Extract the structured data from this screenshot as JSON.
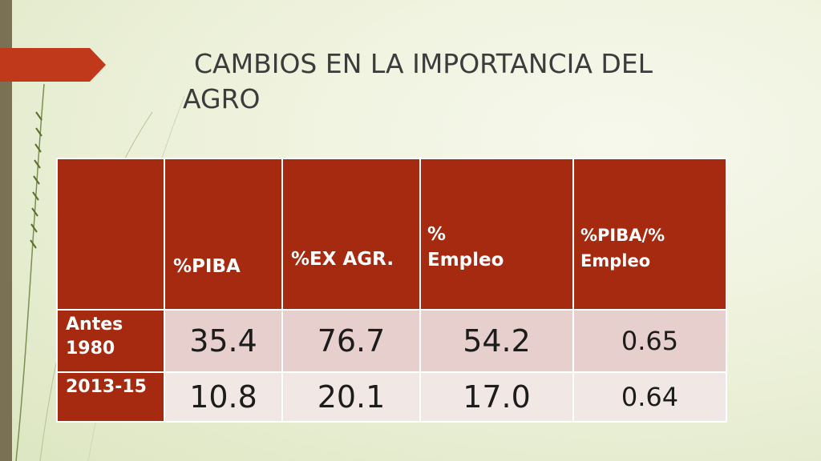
{
  "slide": {
    "title_line1": "CAMBIOS  EN LA IMPORTANCIA DEL",
    "title_line2": "AGRO"
  },
  "table": {
    "headers": [
      "",
      "%PIBA",
      "%EX AGR.",
      "% Empleo",
      "%PIBA/% Empleo"
    ],
    "header_lines": {
      "c3": [
        "%",
        "Empleo"
      ],
      "c4": [
        "%PIBA/%",
        "Empleo"
      ]
    },
    "rows": [
      {
        "label_lines": [
          "Antes",
          "1980"
        ],
        "values": [
          "35.4",
          "76.7",
          "54.2",
          "0.65"
        ]
      },
      {
        "label_lines": [
          "2013-15"
        ],
        "values": [
          "10.8",
          "20.1",
          "17.0",
          "0.64"
        ]
      }
    ]
  },
  "colors": {
    "accent": "#a52a10",
    "arrow": "#c0391b",
    "left_bar": "#7a7155",
    "row1_fill": "#e6cfcc",
    "row2_fill": "#f1e8e6"
  }
}
